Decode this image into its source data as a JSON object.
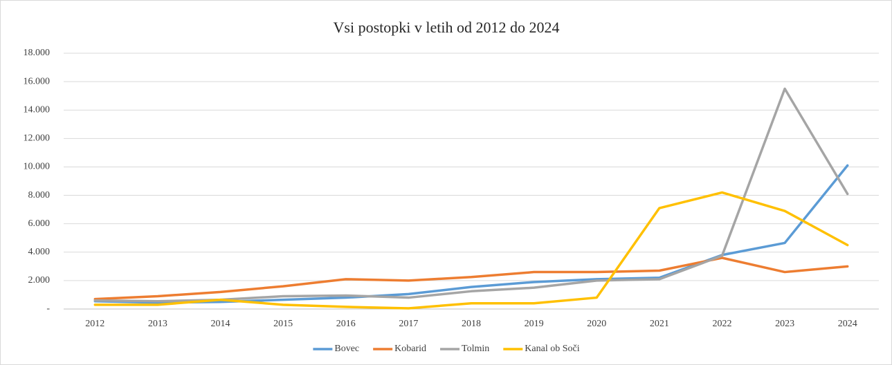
{
  "chart_data": {
    "type": "line",
    "title": "Vsi postopki v letih od 2012 do 2024",
    "categories": [
      "2012",
      "2013",
      "2014",
      "2015",
      "2016",
      "2017",
      "2018",
      "2019",
      "2020",
      "2021",
      "2022",
      "2023",
      "2024"
    ],
    "series": [
      {
        "name": "Bovec",
        "color": "#5b9bd5",
        "values": [
          550,
          450,
          500,
          650,
          800,
          1050,
          1550,
          1900,
          2100,
          2200,
          3800,
          4650,
          10100
        ]
      },
      {
        "name": "Kobarid",
        "color": "#ed7d31",
        "values": [
          700,
          900,
          1200,
          1600,
          2100,
          2000,
          2250,
          2600,
          2600,
          2700,
          3600,
          2600,
          3000
        ]
      },
      {
        "name": "Tolmin",
        "color": "#a5a5a5",
        "values": [
          600,
          550,
          650,
          900,
          950,
          800,
          1250,
          1500,
          2000,
          2100,
          3750,
          15500,
          8100
        ]
      },
      {
        "name": "Kanal ob Soči",
        "color": "#ffc000",
        "values": [
          300,
          300,
          650,
          300,
          150,
          50,
          400,
          400,
          800,
          7100,
          8200,
          6900,
          4500
        ]
      }
    ],
    "ylim": [
      0,
      18000
    ],
    "yticks": [
      {
        "value": 0,
        "label": "-"
      },
      {
        "value": 2000,
        "label": "2.000"
      },
      {
        "value": 4000,
        "label": "4.000"
      },
      {
        "value": 6000,
        "label": "6.000"
      },
      {
        "value": 8000,
        "label": "8.000"
      },
      {
        "value": 10000,
        "label": "10.000"
      },
      {
        "value": 12000,
        "label": "12.000"
      },
      {
        "value": 14000,
        "label": "14.000"
      },
      {
        "value": 16000,
        "label": "16.000"
      },
      {
        "value": 18000,
        "label": "18.000"
      }
    ],
    "grid": true,
    "legend": "bottom"
  }
}
